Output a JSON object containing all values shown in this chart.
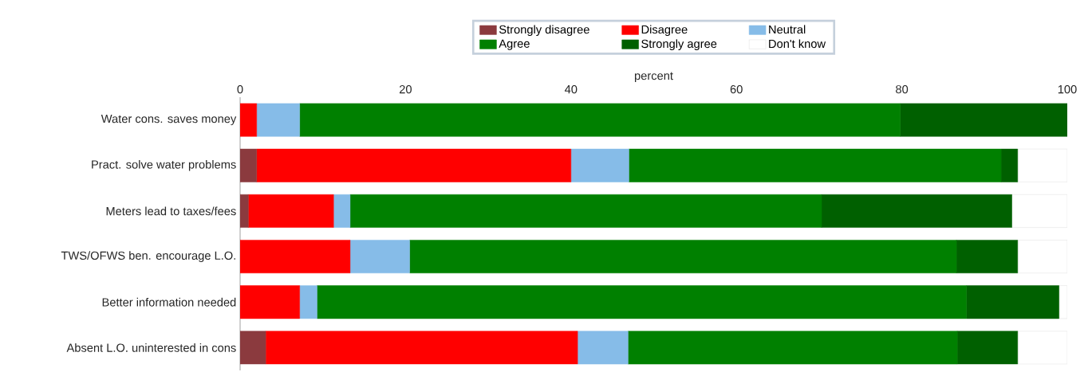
{
  "chart_data": {
    "type": "bar",
    "orientation": "horizontal",
    "stacked": true,
    "xlabel": "percent",
    "categories": [
      "Water cons. saves money",
      "Pract. solve water problems",
      "Meters lead to taxes/fees",
      "TWS/OFWS ben. encourage L.O.",
      "Better information needed",
      "Absent L.O. uninterested in cons"
    ],
    "series": [
      {
        "name": "Strongly disagree",
        "color": "#8b3a3e",
        "values": [
          0,
          2,
          1,
          0,
          0,
          3.1
        ]
      },
      {
        "name": "Disagree",
        "color": "#ff0000",
        "values": [
          2,
          38,
          10.3,
          13.3,
          7.2,
          37.7
        ]
      },
      {
        "name": "Neutral",
        "color": "#86bce8",
        "values": [
          5.2,
          7,
          2,
          7.2,
          2.1,
          6.1
        ]
      },
      {
        "name": "Agree",
        "color": "#008000",
        "values": [
          72.6,
          45,
          57,
          66.1,
          78.5,
          39.8
        ]
      },
      {
        "name": "Strongly agree",
        "color": "#006000",
        "values": [
          20.2,
          2,
          23,
          7.4,
          11.2,
          7.3
        ]
      },
      {
        "name": "Don't know",
        "color": "#ffffff",
        "values": [
          0,
          6,
          6.7,
          6,
          1,
          6
        ]
      }
    ],
    "xlim": [
      0,
      100
    ],
    "xticks": [
      0,
      20,
      40,
      60,
      80,
      100
    ],
    "legend": "top"
  }
}
